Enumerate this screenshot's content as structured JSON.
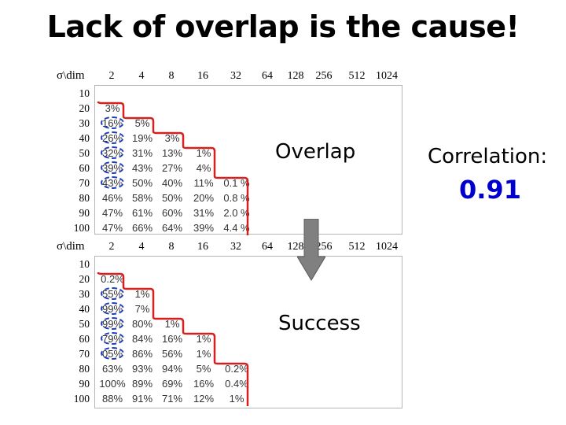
{
  "title": "Lack of overlap is the cause!",
  "labels": {
    "overlap": "Overlap",
    "success": "Success",
    "correlation": "Correlation:",
    "correlation_value": "0.91"
  },
  "colors": {
    "accent_blue": "#0000cc",
    "stair_red": "#d42020",
    "oval_blue": "#1f3fbf",
    "arrow_gray": "#808080"
  },
  "header": {
    "label": "σ\\dim",
    "dims": [
      "2",
      "4",
      "8",
      "16",
      "32",
      "64",
      "128",
      "256",
      "512",
      "1024"
    ]
  },
  "rows": [
    "10",
    "20",
    "30",
    "40",
    "50",
    "60",
    "70",
    "80",
    "90",
    "100"
  ],
  "overlap_table": [
    [],
    [
      "3%"
    ],
    [
      "16%",
      "5%"
    ],
    [
      "26%",
      "19%",
      "3%"
    ],
    [
      "32%",
      "31%",
      "13%",
      "1%"
    ],
    [
      "39%",
      "43%",
      "27%",
      "4%"
    ],
    [
      "43%",
      "50%",
      "40%",
      "11%",
      "0.1 %"
    ],
    [
      "46%",
      "58%",
      "50%",
      "20%",
      "0.8 %"
    ],
    [
      "47%",
      "61%",
      "60%",
      "31%",
      "2.0 %"
    ],
    [
      "47%",
      "66%",
      "64%",
      "39%",
      "4.4 %"
    ]
  ],
  "success_table": [
    [],
    [
      "0.2%"
    ],
    [
      "55%",
      "1%"
    ],
    [
      "99%",
      "7%"
    ],
    [
      "99%",
      "80%",
      "1%"
    ],
    [
      "79%",
      "84%",
      "16%",
      "1%"
    ],
    [
      "05%",
      "86%",
      "56%",
      "1%"
    ],
    [
      "63%",
      "93%",
      "94%",
      "5%",
      "0.2%"
    ],
    [
      "100%",
      "89%",
      "69%",
      "16%",
      "0.4%"
    ],
    [
      "88%",
      "91%",
      "71%",
      "12%",
      "1%"
    ]
  ]
}
